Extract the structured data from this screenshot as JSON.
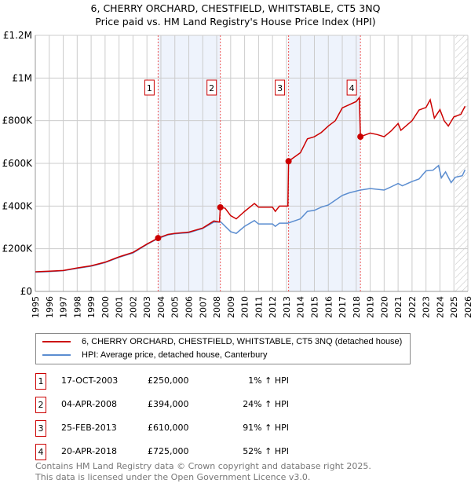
{
  "chart_data": {
    "type": "line",
    "title": "6, CHERRY ORCHARD, CHESTFIELD, WHITSTABLE, CT5 3NQ",
    "subtitle": "Price paid vs. HM Land Registry's House Price Index (HPI)",
    "xlim": [
      1995,
      2026
    ],
    "ylim": [
      0,
      1200000
    ],
    "x_ticks": [
      "1995",
      "1996",
      "1997",
      "1998",
      "1999",
      "2000",
      "2001",
      "2002",
      "2003",
      "2004",
      "2005",
      "2006",
      "2007",
      "2008",
      "2009",
      "2010",
      "2011",
      "2012",
      "2013",
      "2014",
      "2015",
      "2016",
      "2017",
      "2018",
      "2019",
      "2020",
      "2021",
      "2022",
      "2023",
      "2024",
      "2025",
      "2026"
    ],
    "y_ticks": [
      {
        "v": 0,
        "label": "£0"
      },
      {
        "v": 200000,
        "label": "£200K"
      },
      {
        "v": 400000,
        "label": "£400K"
      },
      {
        "v": 600000,
        "label": "£600K"
      },
      {
        "v": 800000,
        "label": "£800K"
      },
      {
        "v": 1000000,
        "label": "£1M"
      },
      {
        "v": 1200000,
        "label": "£1.2M"
      }
    ],
    "grid": true,
    "shaded_periods": [
      [
        2003.8,
        2008.26
      ],
      [
        2013.15,
        2018.3
      ]
    ],
    "forecast_hatch_from": 2025.1,
    "series": [
      {
        "name": "6, CHERRY ORCHARD, CHESTFIELD, WHITSTABLE, CT5 3NQ (detached house)",
        "color": "#cc0000",
        "points": [
          [
            1995,
            92000
          ],
          [
            1996,
            95000
          ],
          [
            1997,
            98000
          ],
          [
            1998,
            110000
          ],
          [
            1999,
            120000
          ],
          [
            2000,
            137000
          ],
          [
            2001,
            162000
          ],
          [
            2002,
            183000
          ],
          [
            2003,
            222000
          ],
          [
            2003.8,
            250000
          ],
          [
            2004.5,
            267000
          ],
          [
            2005,
            272000
          ],
          [
            2006,
            278000
          ],
          [
            2007,
            297000
          ],
          [
            2007.8,
            330000
          ],
          [
            2008.2,
            325000
          ],
          [
            2008.26,
            394000
          ],
          [
            2008.6,
            390000
          ],
          [
            2009,
            355000
          ],
          [
            2009.4,
            340000
          ],
          [
            2010,
            375000
          ],
          [
            2010.7,
            412000
          ],
          [
            2011,
            395000
          ],
          [
            2012,
            395000
          ],
          [
            2012.2,
            375000
          ],
          [
            2012.5,
            400000
          ],
          [
            2013.1,
            400000
          ],
          [
            2013.15,
            610000
          ],
          [
            2014,
            650000
          ],
          [
            2014.5,
            715000
          ],
          [
            2015,
            725000
          ],
          [
            2015.5,
            745000
          ],
          [
            2016,
            775000
          ],
          [
            2016.5,
            800000
          ],
          [
            2017,
            860000
          ],
          [
            2017.5,
            875000
          ],
          [
            2018,
            890000
          ],
          [
            2018.22,
            908000
          ],
          [
            2018.3,
            725000
          ],
          [
            2019,
            742000
          ],
          [
            2019.5,
            735000
          ],
          [
            2020,
            725000
          ],
          [
            2020.5,
            752000
          ],
          [
            2021,
            787000
          ],
          [
            2021.2,
            755000
          ],
          [
            2022,
            800000
          ],
          [
            2022.5,
            850000
          ],
          [
            2023,
            862000
          ],
          [
            2023.3,
            898000
          ],
          [
            2023.6,
            812000
          ],
          [
            2024,
            852000
          ],
          [
            2024.3,
            800000
          ],
          [
            2024.6,
            775000
          ],
          [
            2025,
            818000
          ],
          [
            2025.5,
            830000
          ],
          [
            2025.8,
            868000
          ]
        ]
      },
      {
        "name": "HPI: Average price, detached house, Canterbury",
        "color": "#5b8dd0",
        "points": [
          [
            1995,
            90000
          ],
          [
            1996,
            93000
          ],
          [
            1997,
            97000
          ],
          [
            1998,
            108000
          ],
          [
            1999,
            118000
          ],
          [
            2000,
            135000
          ],
          [
            2001,
            160000
          ],
          [
            2002,
            180000
          ],
          [
            2003,
            220000
          ],
          [
            2003.8,
            248000
          ],
          [
            2004.5,
            265000
          ],
          [
            2005,
            270000
          ],
          [
            2006,
            275000
          ],
          [
            2007,
            295000
          ],
          [
            2007.8,
            325000
          ],
          [
            2008.3,
            325000
          ],
          [
            2009,
            280000
          ],
          [
            2009.4,
            272000
          ],
          [
            2010,
            305000
          ],
          [
            2010.7,
            332000
          ],
          [
            2011,
            316000
          ],
          [
            2012,
            316000
          ],
          [
            2012.2,
            305000
          ],
          [
            2012.5,
            320000
          ],
          [
            2013.1,
            320000
          ],
          [
            2014,
            340000
          ],
          [
            2014.5,
            375000
          ],
          [
            2015,
            380000
          ],
          [
            2015.5,
            395000
          ],
          [
            2016,
            405000
          ],
          [
            2017,
            450000
          ],
          [
            2017.5,
            462000
          ],
          [
            2018.3,
            475000
          ],
          [
            2019,
            482000
          ],
          [
            2020,
            475000
          ],
          [
            2020.5,
            490000
          ],
          [
            2021,
            506000
          ],
          [
            2021.3,
            495000
          ],
          [
            2022,
            515000
          ],
          [
            2022.5,
            527000
          ],
          [
            2023,
            565000
          ],
          [
            2023.5,
            568000
          ],
          [
            2023.9,
            590000
          ],
          [
            2024.1,
            532000
          ],
          [
            2024.4,
            560000
          ],
          [
            2024.8,
            510000
          ],
          [
            2025.1,
            535000
          ],
          [
            2025.6,
            542000
          ],
          [
            2025.8,
            570000
          ]
        ]
      }
    ],
    "sales": [
      {
        "n": "1",
        "x": 2003.8,
        "y": 250000,
        "date": "17-OCT-2003",
        "price": "£250,000",
        "hpi": "1% ↑ HPI"
      },
      {
        "n": "2",
        "x": 2008.26,
        "y": 394000,
        "date": "04-APR-2008",
        "price": "£394,000",
        "hpi": "24% ↑ HPI"
      },
      {
        "n": "3",
        "x": 2013.15,
        "y": 610000,
        "date": "25-FEB-2013",
        "price": "£610,000",
        "hpi": "91% ↑ HPI"
      },
      {
        "n": "4",
        "x": 2018.3,
        "y": 725000,
        "date": "20-APR-2018",
        "price": "£725,000",
        "hpi": "52% ↑ HPI"
      }
    ]
  },
  "footer": [
    "Contains HM Land Registry data © Crown copyright and database right 2025.",
    "This data is licensed under the Open Government Licence v3.0."
  ]
}
